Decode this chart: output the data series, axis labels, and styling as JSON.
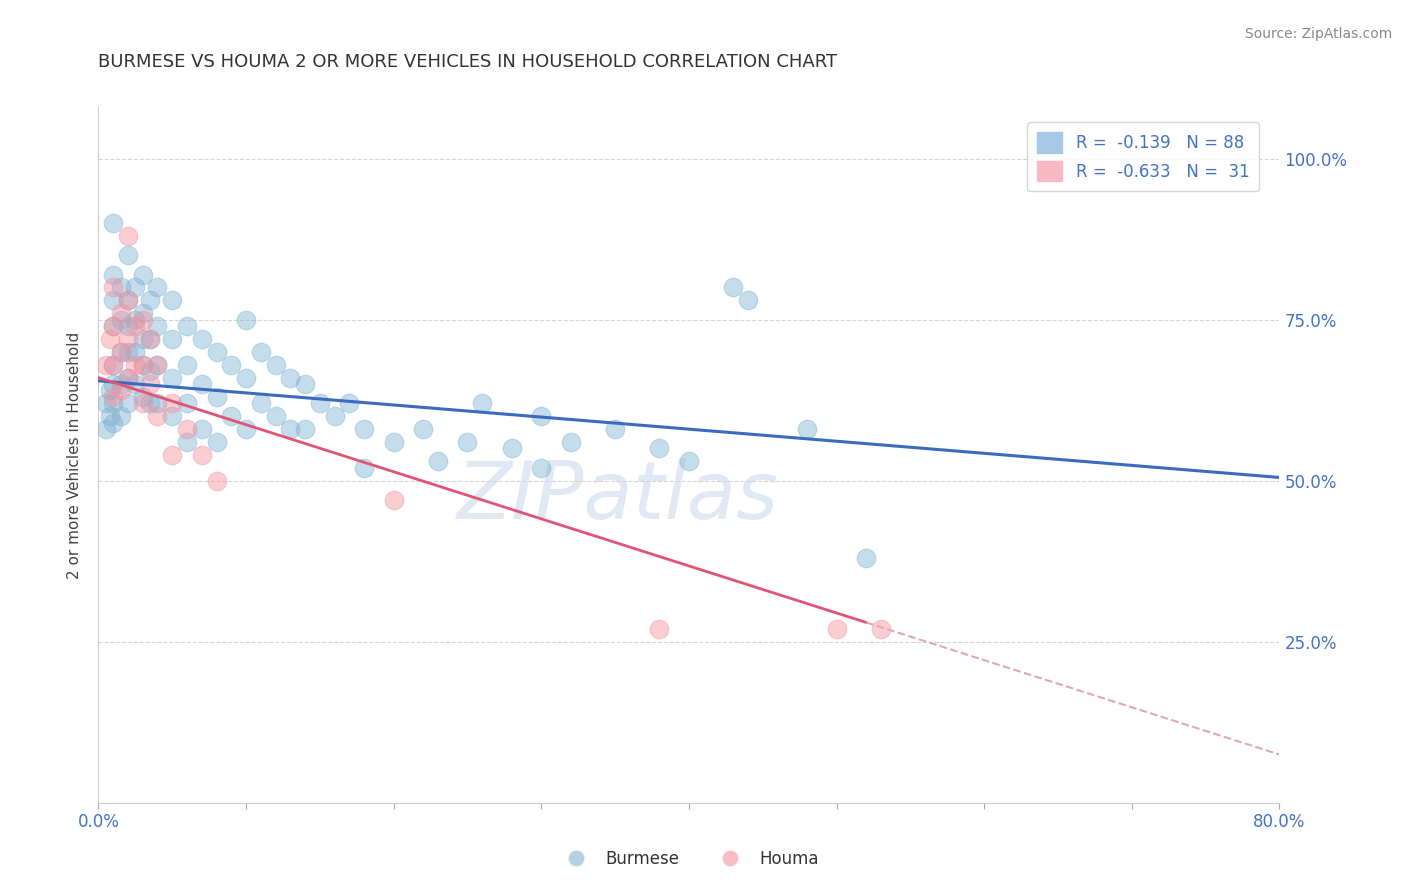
{
  "title": "BURMESE VS HOUMA 2 OR MORE VEHICLES IN HOUSEHOLD CORRELATION CHART",
  "source": "Source: ZipAtlas.com",
  "ylabel": "2 or more Vehicles in Household",
  "xlim": [
    0.0,
    0.8
  ],
  "ylim": [
    0.0,
    1.08
  ],
  "xtick_positions": [
    0.0,
    0.1,
    0.2,
    0.3,
    0.4,
    0.5,
    0.6,
    0.7,
    0.8
  ],
  "xticklabels": [
    "0.0%",
    "",
    "",
    "",
    "",
    "",
    "",
    "",
    "80.0%"
  ],
  "ytick_positions": [
    0.0,
    0.25,
    0.5,
    0.75,
    1.0
  ],
  "yticklabels_right": [
    "",
    "25.0%",
    "50.0%",
    "75.0%",
    "100.0%"
  ],
  "burmese_color": "#7fb3d3",
  "houma_color": "#f4919e",
  "watermark": "ZIPatlas",
  "background_color": "#ffffff",
  "grid_color": "#cccccc",
  "burmese_points": [
    [
      0.005,
      0.62
    ],
    [
      0.005,
      0.58
    ],
    [
      0.008,
      0.64
    ],
    [
      0.008,
      0.6
    ],
    [
      0.01,
      0.9
    ],
    [
      0.01,
      0.82
    ],
    [
      0.01,
      0.78
    ],
    [
      0.01,
      0.74
    ],
    [
      0.01,
      0.68
    ],
    [
      0.01,
      0.65
    ],
    [
      0.01,
      0.62
    ],
    [
      0.01,
      0.59
    ],
    [
      0.015,
      0.8
    ],
    [
      0.015,
      0.75
    ],
    [
      0.015,
      0.7
    ],
    [
      0.015,
      0.65
    ],
    [
      0.015,
      0.6
    ],
    [
      0.02,
      0.85
    ],
    [
      0.02,
      0.78
    ],
    [
      0.02,
      0.74
    ],
    [
      0.02,
      0.7
    ],
    [
      0.02,
      0.66
    ],
    [
      0.02,
      0.62
    ],
    [
      0.025,
      0.8
    ],
    [
      0.025,
      0.75
    ],
    [
      0.025,
      0.7
    ],
    [
      0.025,
      0.65
    ],
    [
      0.03,
      0.82
    ],
    [
      0.03,
      0.76
    ],
    [
      0.03,
      0.72
    ],
    [
      0.03,
      0.68
    ],
    [
      0.03,
      0.63
    ],
    [
      0.035,
      0.78
    ],
    [
      0.035,
      0.72
    ],
    [
      0.035,
      0.67
    ],
    [
      0.035,
      0.62
    ],
    [
      0.04,
      0.8
    ],
    [
      0.04,
      0.74
    ],
    [
      0.04,
      0.68
    ],
    [
      0.04,
      0.62
    ],
    [
      0.05,
      0.78
    ],
    [
      0.05,
      0.72
    ],
    [
      0.05,
      0.66
    ],
    [
      0.05,
      0.6
    ],
    [
      0.06,
      0.74
    ],
    [
      0.06,
      0.68
    ],
    [
      0.06,
      0.62
    ],
    [
      0.06,
      0.56
    ],
    [
      0.07,
      0.72
    ],
    [
      0.07,
      0.65
    ],
    [
      0.07,
      0.58
    ],
    [
      0.08,
      0.7
    ],
    [
      0.08,
      0.63
    ],
    [
      0.08,
      0.56
    ],
    [
      0.09,
      0.68
    ],
    [
      0.09,
      0.6
    ],
    [
      0.1,
      0.75
    ],
    [
      0.1,
      0.66
    ],
    [
      0.1,
      0.58
    ],
    [
      0.11,
      0.7
    ],
    [
      0.11,
      0.62
    ],
    [
      0.12,
      0.68
    ],
    [
      0.12,
      0.6
    ],
    [
      0.13,
      0.66
    ],
    [
      0.13,
      0.58
    ],
    [
      0.14,
      0.65
    ],
    [
      0.14,
      0.58
    ],
    [
      0.15,
      0.62
    ],
    [
      0.16,
      0.6
    ],
    [
      0.17,
      0.62
    ],
    [
      0.18,
      0.58
    ],
    [
      0.18,
      0.52
    ],
    [
      0.2,
      0.56
    ],
    [
      0.22,
      0.58
    ],
    [
      0.23,
      0.53
    ],
    [
      0.25,
      0.56
    ],
    [
      0.26,
      0.62
    ],
    [
      0.28,
      0.55
    ],
    [
      0.3,
      0.6
    ],
    [
      0.3,
      0.52
    ],
    [
      0.32,
      0.56
    ],
    [
      0.35,
      0.58
    ],
    [
      0.38,
      0.55
    ],
    [
      0.4,
      0.53
    ],
    [
      0.43,
      0.8
    ],
    [
      0.44,
      0.78
    ],
    [
      0.48,
      0.58
    ],
    [
      0.52,
      0.38
    ]
  ],
  "houma_points": [
    [
      0.005,
      0.68
    ],
    [
      0.008,
      0.72
    ],
    [
      0.01,
      0.8
    ],
    [
      0.01,
      0.74
    ],
    [
      0.01,
      0.68
    ],
    [
      0.01,
      0.63
    ],
    [
      0.015,
      0.76
    ],
    [
      0.015,
      0.7
    ],
    [
      0.015,
      0.64
    ],
    [
      0.02,
      0.78
    ],
    [
      0.02,
      0.72
    ],
    [
      0.02,
      0.66
    ],
    [
      0.025,
      0.74
    ],
    [
      0.025,
      0.68
    ],
    [
      0.03,
      0.75
    ],
    [
      0.03,
      0.68
    ],
    [
      0.03,
      0.62
    ],
    [
      0.035,
      0.72
    ],
    [
      0.035,
      0.65
    ],
    [
      0.04,
      0.68
    ],
    [
      0.04,
      0.6
    ],
    [
      0.05,
      0.62
    ],
    [
      0.05,
      0.54
    ],
    [
      0.06,
      0.58
    ],
    [
      0.07,
      0.54
    ],
    [
      0.08,
      0.5
    ],
    [
      0.02,
      0.88
    ],
    [
      0.2,
      0.47
    ],
    [
      0.38,
      0.27
    ],
    [
      0.5,
      0.27
    ],
    [
      0.53,
      0.27
    ]
  ],
  "blue_line_x": [
    0.0,
    0.8
  ],
  "blue_line_y": [
    0.655,
    0.505
  ],
  "pink_line_x": [
    0.0,
    0.52
  ],
  "pink_line_y": [
    0.66,
    0.28
  ],
  "dashed_line_x": [
    0.52,
    0.8
  ],
  "dashed_line_y": [
    0.28,
    0.075
  ],
  "title_fontsize": 13,
  "legend_fontsize": 12,
  "blue_line_color": "#3a6bbf",
  "pink_line_color": "#e05575"
}
